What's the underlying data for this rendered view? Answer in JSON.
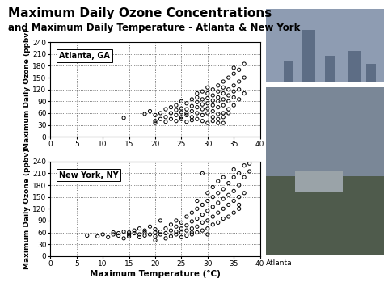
{
  "title": "Maximum Daily Ozone Concentrations",
  "subtitle": "and Maximum Daily Temperature - Atlanta & New York",
  "caption": "Atlanta",
  "chart_data": [
    {
      "type": "scatter",
      "annotations": [
        "Atlanta, GA"
      ],
      "y_label": "Maximum Daily Ozone (ppbv)",
      "color": "#000000",
      "marker": "circle",
      "grid": true,
      "xlim": [
        0,
        40
      ],
      "xticks": [
        0,
        5,
        10,
        15,
        20,
        25,
        30,
        35,
        40
      ],
      "ylim": [
        0,
        240
      ],
      "yticks": [
        0,
        30,
        60,
        90,
        120,
        150,
        180,
        210,
        240
      ],
      "x": [
        14,
        18,
        19,
        20,
        20,
        20,
        21,
        21,
        22,
        22,
        22,
        23,
        23,
        23,
        24,
        24,
        24,
        24,
        25,
        25,
        25,
        25,
        25,
        26,
        26,
        26,
        26,
        26,
        27,
        27,
        27,
        27,
        27,
        28,
        28,
        28,
        28,
        28,
        28,
        29,
        29,
        29,
        29,
        29,
        29,
        30,
        30,
        30,
        30,
        30,
        30,
        30,
        31,
        31,
        31,
        31,
        31,
        31,
        31,
        32,
        32,
        32,
        32,
        32,
        32,
        32,
        33,
        33,
        33,
        33,
        33,
        33,
        33,
        34,
        34,
        34,
        34,
        34,
        34,
        35,
        35,
        35,
        35,
        35,
        36,
        36,
        36,
        37,
        37,
        37,
        35,
        36,
        32,
        33
      ],
      "values": [
        48,
        58,
        65,
        40,
        35,
        55,
        60,
        45,
        70,
        50,
        38,
        60,
        75,
        45,
        55,
        68,
        40,
        80,
        50,
        62,
        72,
        90,
        45,
        55,
        70,
        85,
        38,
        60,
        65,
        78,
        95,
        50,
        42,
        60,
        75,
        88,
        100,
        45,
        110,
        55,
        70,
        82,
        95,
        40,
        115,
        60,
        72,
        85,
        98,
        110,
        35,
        125,
        50,
        65,
        80,
        92,
        105,
        120,
        40,
        58,
        75,
        90,
        100,
        115,
        130,
        45,
        60,
        80,
        95,
        110,
        125,
        140,
        50,
        70,
        90,
        105,
        120,
        150,
        60,
        80,
        100,
        130,
        160,
        115,
        95,
        140,
        170,
        185,
        110,
        150,
        175,
        120,
        35,
        35
      ]
    },
    {
      "type": "scatter",
      "annotations": [
        "New York, NY"
      ],
      "x_label": "Maximum Temperature (°C)",
      "y_label": "Maximum Daily Ozone (ppbv)",
      "color": "#000000",
      "marker": "circle",
      "grid": true,
      "xlim": [
        0,
        40
      ],
      "xticks": [
        0,
        5,
        10,
        15,
        20,
        25,
        30,
        35,
        40
      ],
      "ylim": [
        0,
        240
      ],
      "yticks": [
        0,
        30,
        60,
        90,
        120,
        150,
        180,
        210,
        240
      ],
      "x": [
        7,
        9,
        10,
        11,
        12,
        12,
        13,
        13,
        14,
        14,
        15,
        15,
        15,
        16,
        16,
        17,
        17,
        17,
        18,
        18,
        18,
        19,
        19,
        20,
        20,
        20,
        20,
        21,
        21,
        21,
        22,
        22,
        22,
        23,
        23,
        23,
        24,
        24,
        24,
        24,
        25,
        25,
        25,
        25,
        26,
        26,
        26,
        26,
        27,
        27,
        27,
        27,
        27,
        28,
        28,
        28,
        28,
        28,
        29,
        29,
        29,
        29,
        29,
        30,
        30,
        30,
        30,
        30,
        30,
        31,
        31,
        31,
        31,
        31,
        32,
        32,
        32,
        32,
        32,
        33,
        33,
        33,
        33,
        33,
        34,
        34,
        34,
        34,
        35,
        35,
        35,
        35,
        35,
        36,
        36,
        36,
        36,
        37,
        37,
        37,
        38,
        38,
        36
      ],
      "values": [
        52,
        50,
        55,
        48,
        55,
        60,
        52,
        58,
        45,
        62,
        55,
        60,
        50,
        58,
        65,
        48,
        55,
        70,
        60,
        52,
        65,
        55,
        75,
        40,
        60,
        68,
        50,
        55,
        62,
        90,
        45,
        58,
        70,
        50,
        65,
        80,
        55,
        62,
        75,
        90,
        48,
        60,
        70,
        85,
        52,
        65,
        78,
        100,
        55,
        70,
        88,
        110,
        60,
        60,
        75,
        95,
        120,
        140,
        65,
        85,
        105,
        130,
        210,
        70,
        90,
        115,
        140,
        160,
        55,
        80,
        100,
        125,
        150,
        175,
        85,
        110,
        135,
        160,
        190,
        95,
        120,
        145,
        170,
        200,
        100,
        130,
        155,
        185,
        110,
        140,
        165,
        200,
        220,
        130,
        150,
        180,
        210,
        160,
        200,
        230,
        215,
        235,
        120
      ]
    }
  ]
}
